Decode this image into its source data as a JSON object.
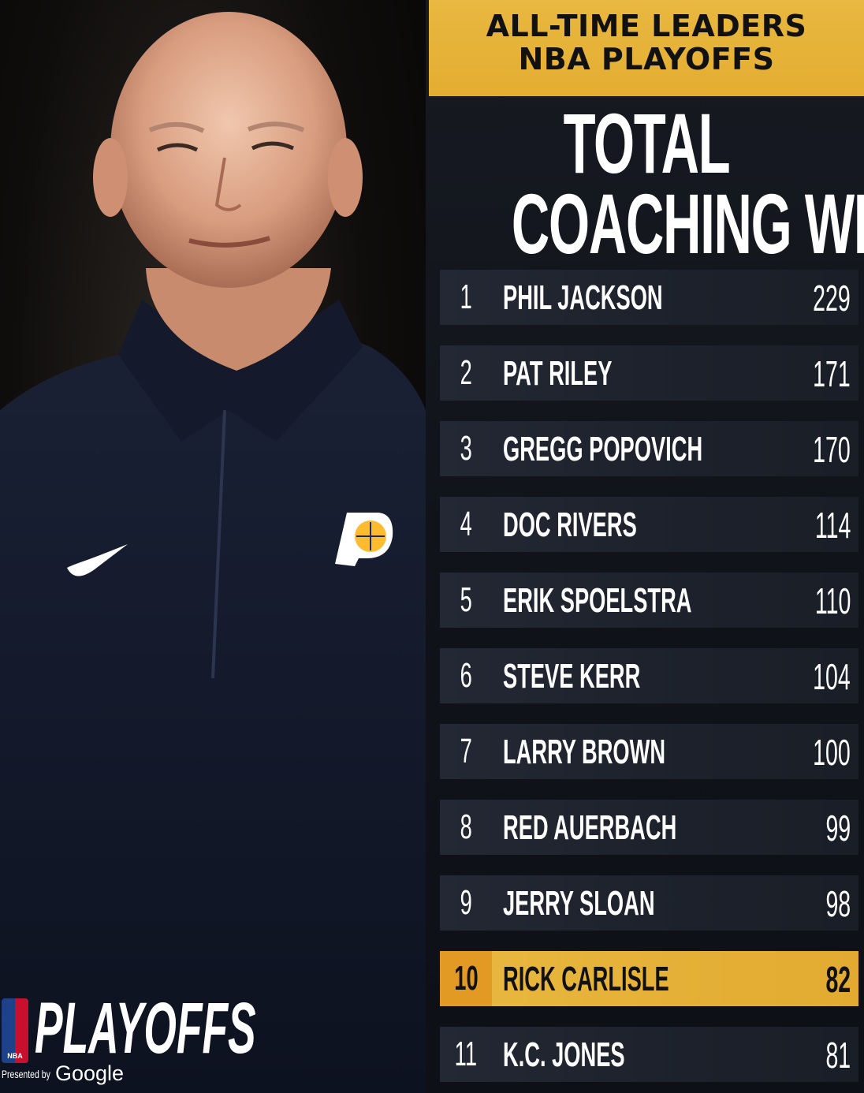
{
  "header": {
    "line1": "ALL-TIME LEADERS",
    "line2": "NBA PLAYOFFS"
  },
  "title": {
    "line1": "TOTAL",
    "line2": "COACHING WINS"
  },
  "leaders": [
    {
      "rank": "1",
      "name": "PHIL JACKSON",
      "wins": "229"
    },
    {
      "rank": "2",
      "name": "PAT RILEY",
      "wins": "171"
    },
    {
      "rank": "3",
      "name": "GREGG POPOVICH",
      "wins": "170"
    },
    {
      "rank": "4",
      "name": "DOC RIVERS",
      "wins": "114"
    },
    {
      "rank": "5",
      "name": "ERIK SPOELSTRA",
      "wins": "110"
    },
    {
      "rank": "6",
      "name": "STEVE KERR",
      "wins": "104"
    },
    {
      "rank": "7",
      "name": "LARRY BROWN",
      "wins": "100"
    },
    {
      "rank": "8",
      "name": "RED AUERBACH",
      "wins": "99"
    },
    {
      "rank": "9",
      "name": "JERRY SLOAN",
      "wins": "98"
    },
    {
      "rank": "10",
      "name": "RICK CARLISLE",
      "wins": "82",
      "highlight": true
    },
    {
      "rank": "11",
      "name": "K.C. JONES",
      "wins": "81"
    }
  ],
  "branding": {
    "playoffs_word": "PLAYOFFS",
    "nba_tag": "NBA",
    "presented_by": "Presented by",
    "sponsor": "Google"
  },
  "colors": {
    "gold": "#e7b53a",
    "highlight_rank": "#e39a24",
    "row_bg": "#232834",
    "jacket": "#141b2e"
  },
  "photo": {
    "subject_icons": [
      "coach-portrait",
      "nike-swoosh-icon",
      "pacers-logo-icon"
    ]
  }
}
